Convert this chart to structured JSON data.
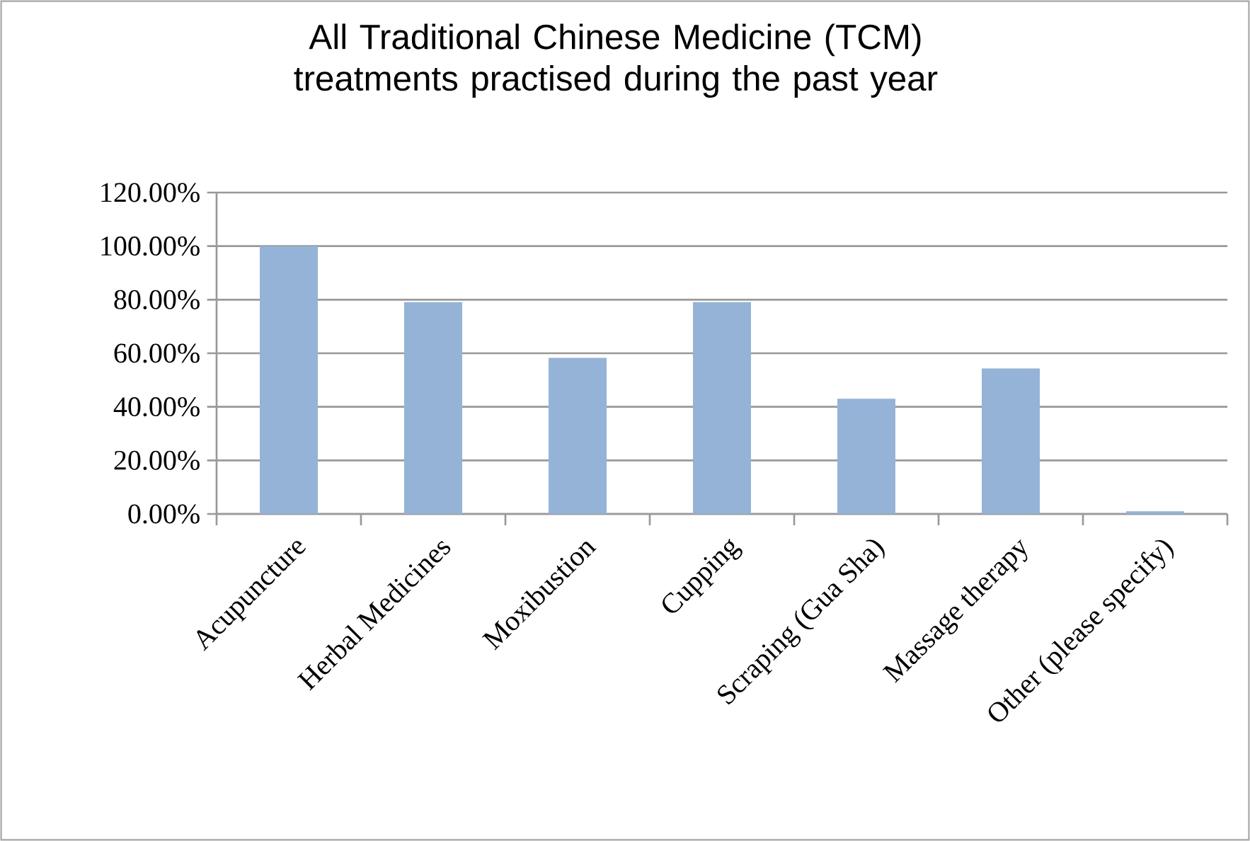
{
  "chart_data": {
    "type": "bar",
    "title": "All Traditional Chinese Medicine (TCM)\ntreatments practised during the past year",
    "categories": [
      "Acupuncture",
      "Herbal Medicines",
      "Moxibustion",
      "Cupping",
      "Scraping (Gua Sha)",
      "Massage therapy",
      "Other (please specify)"
    ],
    "values": [
      100,
      79.1,
      58.3,
      79.1,
      43.0,
      54.3,
      1.0
    ],
    "color": "#95b3d7",
    "ylim": [
      0,
      120
    ],
    "yticks": [
      {
        "value": 0,
        "label": "0.00%"
      },
      {
        "value": 20,
        "label": "20.00%"
      },
      {
        "value": 40,
        "label": "40.00%"
      },
      {
        "value": 60,
        "label": "60.00%"
      },
      {
        "value": 80,
        "label": "80.00%"
      },
      {
        "value": 100,
        "label": "100.00%"
      },
      {
        "value": 120,
        "label": "120.00%"
      }
    ],
    "grid": "y"
  }
}
